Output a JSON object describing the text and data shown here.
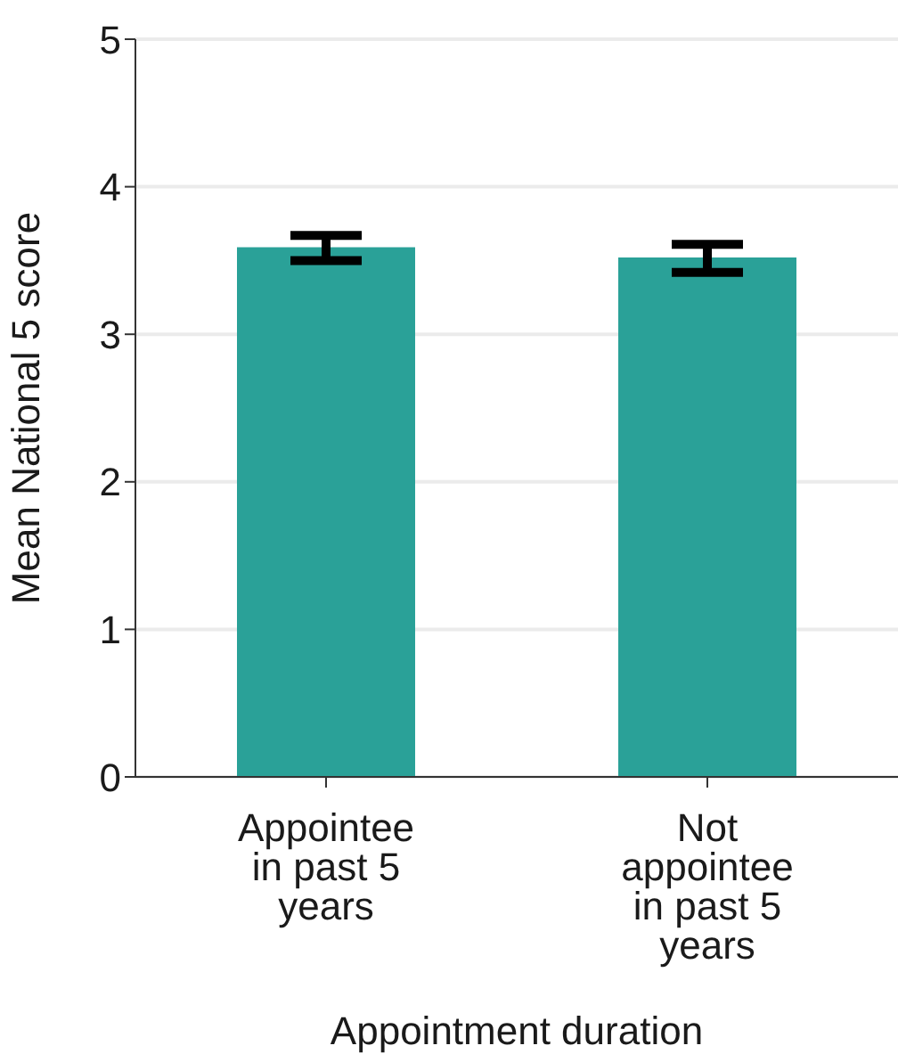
{
  "chart_data": {
    "type": "bar",
    "xlabel": "Appointment duration",
    "ylabel": "Mean National 5 score",
    "categories": [
      "Appointee in past 5 years",
      "Not appointee in past 5 years"
    ],
    "values": [
      3.59,
      3.52
    ],
    "errors": [
      [
        3.5,
        3.67
      ],
      [
        3.42,
        3.61
      ]
    ],
    "color": "#2aa198",
    "ylim": [
      0,
      5
    ],
    "yticks": [
      0,
      1,
      2,
      3,
      4,
      5
    ],
    "grid": "y"
  }
}
